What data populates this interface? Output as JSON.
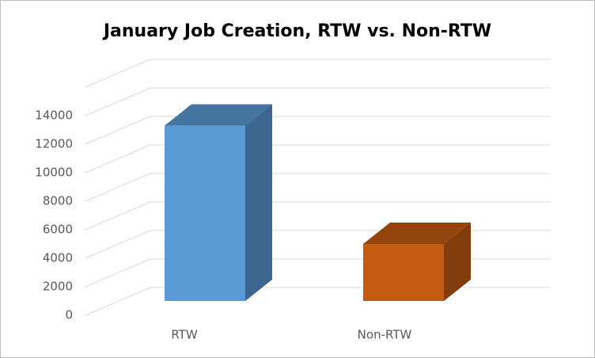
{
  "chart_data": {
    "type": "bar3d",
    "title": "January Job Creation, RTW vs. Non-RTW",
    "categories": [
      "RTW",
      "Non-RTW"
    ],
    "values": [
      12300,
      4000
    ],
    "colors": [
      "#5b9bd5",
      "#c55a11"
    ],
    "ylim": [
      0,
      16000
    ],
    "yticks": [
      0,
      2000,
      4000,
      6000,
      8000,
      10000,
      12000,
      14000
    ],
    "grid": true
  }
}
